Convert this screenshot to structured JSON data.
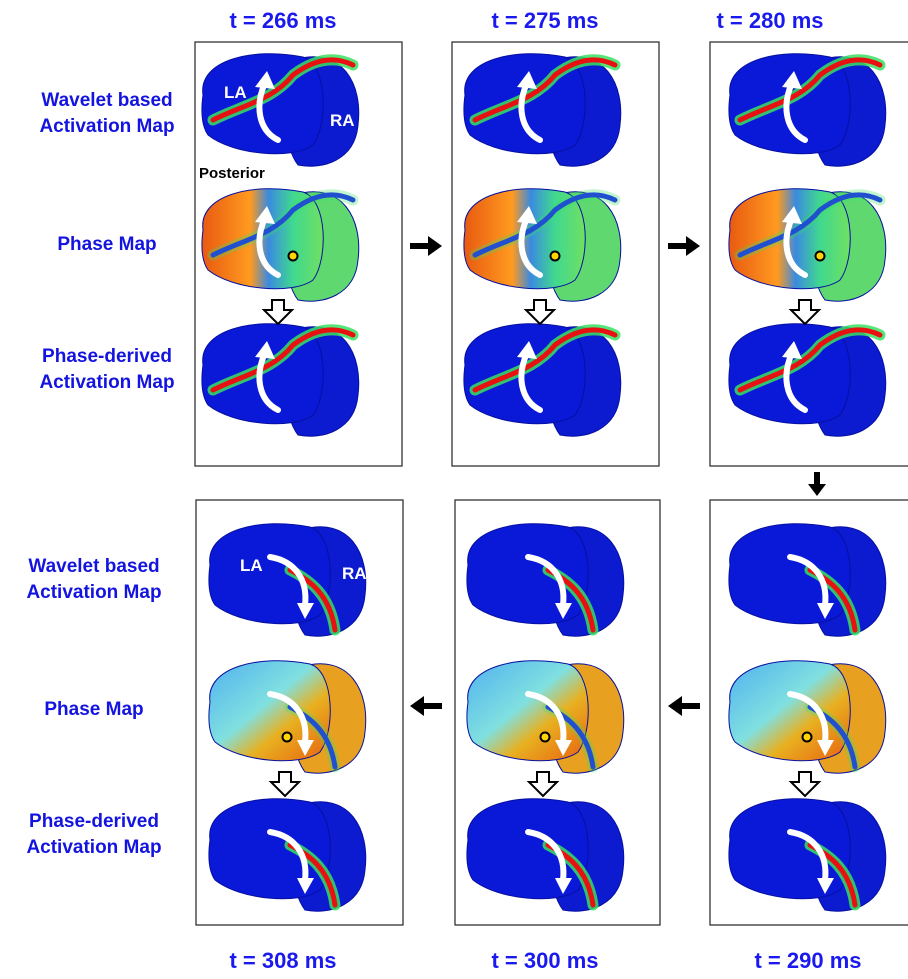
{
  "time_labels_top": [
    "t = 266 ms",
    "t = 275 ms",
    "t = 280 ms"
  ],
  "time_labels_bottom": [
    "t = 308 ms",
    "t = 300 ms",
    "t = 290 ms"
  ],
  "row_labels_top": [
    {
      "lines": [
        "Wavelet based",
        "Activation Map"
      ]
    },
    {
      "lines": [
        "Phase Map"
      ]
    },
    {
      "lines": [
        "Phase-derived",
        "Activation Map"
      ]
    }
  ],
  "row_labels_bottom": [
    {
      "lines": [
        "Wavelet based",
        "Activation Map"
      ]
    },
    {
      "lines": [
        "Phase Map"
      ]
    },
    {
      "lines": [
        "Phase-derived",
        "Activation Map"
      ]
    }
  ],
  "annotations_top": {
    "la": "LA",
    "ra": "RA",
    "view": "Posterior"
  },
  "annotations_bottom": {
    "la": "LA",
    "ra": "RA"
  }
}
